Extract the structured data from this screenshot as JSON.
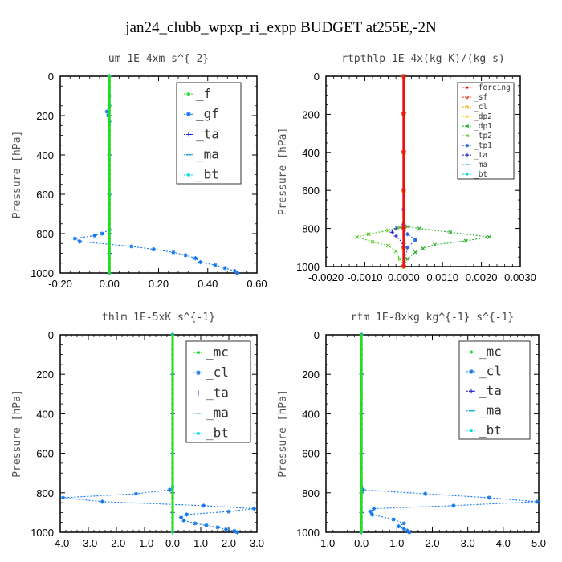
{
  "page": {
    "title": "jan24_clubb_wpxp_ri_expp  BUDGET at255E,-2N"
  },
  "chart_data": [
    {
      "type": "line",
      "title": "um  1E-4xm s^{-2}",
      "ylabel": "Pressure [hPa]",
      "xlim": [
        -0.2,
        0.6
      ],
      "ylim": [
        1000,
        0
      ],
      "xticks": [
        "-0.20",
        "0.00",
        "0.20",
        "0.40",
        "0.60"
      ],
      "yticks": [
        "0",
        "200",
        "400",
        "600",
        "800",
        "1000"
      ],
      "legend_size": "large",
      "series": [
        {
          "name": "_f",
          "color": "#22dd22",
          "marker": "o",
          "x": [
            0,
            0,
            0,
            0,
            0,
            0,
            0,
            0,
            0,
            0,
            0,
            0,
            0,
            0,
            0,
            0,
            0,
            0,
            0,
            0,
            0,
            0,
            0,
            0,
            0,
            0,
            0,
            0,
            0,
            0,
            0,
            0,
            0,
            0,
            0,
            0,
            0,
            0,
            0,
            0,
            0
          ],
          "y": [
            0,
            25,
            50,
            75,
            100,
            125,
            150,
            175,
            200,
            225,
            250,
            275,
            300,
            325,
            350,
            375,
            400,
            425,
            450,
            475,
            500,
            525,
            550,
            575,
            600,
            625,
            650,
            675,
            700,
            725,
            750,
            775,
            800,
            825,
            850,
            875,
            900,
            925,
            950,
            975,
            1000
          ]
        },
        {
          "name": "_gf",
          "color": "#1177ee",
          "marker": "*",
          "x": [
            0,
            0,
            0,
            -0.01,
            -0.005,
            0,
            0,
            0,
            -0.03,
            -0.06,
            -0.14,
            -0.12,
            0.09,
            0.18,
            0.26,
            0.31,
            0.35,
            0.37,
            0.43,
            0.47,
            0.51,
            0.52
          ],
          "y": [
            0,
            100,
            150,
            180,
            200,
            230,
            600,
            780,
            800,
            810,
            825,
            840,
            865,
            880,
            895,
            910,
            925,
            945,
            960,
            975,
            990,
            1000
          ]
        },
        {
          "name": "_ta",
          "color": "#2222dd",
          "marker": "+",
          "x": [
            0,
            0,
            0,
            0,
            0,
            0,
            0
          ],
          "y": [
            0,
            200,
            400,
            600,
            800,
            900,
            1000
          ]
        },
        {
          "name": "_ma",
          "color": "#0099cc",
          "marker": "-",
          "x": [
            0,
            0,
            0,
            0,
            0,
            0,
            0
          ],
          "y": [
            0,
            200,
            400,
            600,
            800,
            900,
            1000
          ]
        },
        {
          "name": "_bt",
          "color": "#00e0e0",
          "marker": "o",
          "x": [
            0,
            0,
            0,
            0,
            0,
            0,
            0
          ],
          "y": [
            0,
            200,
            400,
            600,
            800,
            900,
            1000
          ]
        }
      ]
    },
    {
      "type": "line",
      "title": "rtpthlp  1E-4x(kg K)/(kg s)",
      "ylabel": "Pressure [hPa]",
      "xlim": [
        -0.002,
        0.003
      ],
      "ylim": [
        1000,
        0
      ],
      "xticks": [
        "-0.0020",
        "-0.0010",
        "0.0000",
        "0.0010",
        "0.0020",
        "0.0030"
      ],
      "yticks": [
        "0",
        "200",
        "400",
        "600",
        "800",
        "1000"
      ],
      "legend_size": "small",
      "series": [
        {
          "name": "_forcing",
          "color": "#ee1111",
          "marker": "o",
          "x": [
            0,
            0,
            0,
            0,
            0,
            0,
            0
          ],
          "y": [
            0,
            200,
            400,
            600,
            800,
            900,
            1000
          ]
        },
        {
          "name": "_sf",
          "color": "#ee3322",
          "marker": "v",
          "x": [
            0,
            0,
            0,
            0,
            0,
            0,
            0
          ],
          "y": [
            0,
            200,
            400,
            600,
            800,
            900,
            1000
          ]
        },
        {
          "name": "_cl",
          "color": "#ffaa00",
          "marker": "^",
          "x": [
            0,
            0,
            0,
            0,
            0,
            0,
            0
          ],
          "y": [
            0,
            200,
            400,
            600,
            800,
            900,
            1000
          ]
        },
        {
          "name": "_dp2",
          "color": "#ffcc22",
          "marker": "o",
          "x": [
            0,
            0,
            0,
            0,
            0,
            0,
            0
          ],
          "y": [
            0,
            200,
            400,
            600,
            800,
            900,
            1000
          ]
        },
        {
          "name": "_dp1",
          "color": "#22aa22",
          "marker": "x",
          "x": [
            0,
            0,
            0,
            0.0001,
            0.0004,
            0.0012,
            0.0022,
            0.0016,
            0.0008,
            0.0005,
            0.0003,
            0.0001,
            0
          ],
          "y": [
            0,
            600,
            780,
            790,
            800,
            820,
            845,
            865,
            885,
            905,
            925,
            960,
            1000
          ]
        },
        {
          "name": "_tp2",
          "color": "#55cc22",
          "marker": "x",
          "x": [
            0,
            0,
            0,
            -0.0001,
            -0.0004,
            -0.0009,
            -0.0012,
            -0.0008,
            -0.0004,
            -0.0002,
            -0.0001,
            0
          ],
          "y": [
            0,
            600,
            780,
            795,
            810,
            830,
            845,
            870,
            890,
            920,
            960,
            1000
          ]
        },
        {
          "name": "_tp1",
          "color": "#2266ee",
          "marker": "*",
          "x": [
            0,
            0,
            0,
            0.0001,
            0.0003,
            0.0001,
            0
          ],
          "y": [
            0,
            700,
            800,
            830,
            860,
            900,
            1000
          ]
        },
        {
          "name": "_ta",
          "color": "#2222dd",
          "marker": "+",
          "x": [
            0,
            0,
            -0.0002,
            -0.0003,
            -0.0002,
            0,
            0
          ],
          "y": [
            0,
            780,
            800,
            820,
            840,
            880,
            1000
          ]
        },
        {
          "name": "_ma",
          "color": "#0099cc",
          "marker": "-",
          "x": [
            0,
            0,
            0,
            0,
            0,
            0,
            0
          ],
          "y": [
            0,
            200,
            400,
            600,
            800,
            900,
            1000
          ]
        },
        {
          "name": "_bt",
          "color": "#00e0e0",
          "marker": "o",
          "x": [
            0,
            0,
            0,
            0,
            0,
            0,
            0
          ],
          "y": [
            0,
            200,
            400,
            600,
            800,
            900,
            1000
          ]
        }
      ]
    },
    {
      "type": "line",
      "title": "thlm  1E-5xK s^{-1}",
      "ylabel": "Pressure [hPa]",
      "xlim": [
        -4.0,
        3.0
      ],
      "ylim": [
        1000,
        0
      ],
      "xticks": [
        "-4.0",
        "-3.0",
        "-2.0",
        "-1.0",
        "0.0",
        "1.0",
        "2.0",
        "3.0"
      ],
      "yticks": [
        "0",
        "200",
        "400",
        "600",
        "800",
        "1000"
      ],
      "legend_size": "large",
      "series": [
        {
          "name": "_mc",
          "color": "#22dd22",
          "marker": "o",
          "x": [
            0,
            0,
            0,
            0,
            0,
            0,
            0,
            0,
            0,
            0,
            0,
            0,
            0,
            0,
            0,
            0,
            0,
            0,
            0,
            0,
            0,
            0,
            0,
            0,
            0,
            0,
            0,
            0,
            0,
            0,
            0,
            0,
            0,
            0,
            0,
            0,
            0,
            0,
            0,
            0,
            0
          ],
          "y": [
            0,
            25,
            50,
            75,
            100,
            125,
            150,
            175,
            200,
            225,
            250,
            275,
            300,
            325,
            350,
            375,
            400,
            425,
            450,
            475,
            500,
            525,
            550,
            575,
            600,
            625,
            650,
            675,
            700,
            725,
            750,
            775,
            800,
            825,
            850,
            875,
            900,
            925,
            950,
            975,
            1000
          ]
        },
        {
          "name": "_cl",
          "color": "#1177ee",
          "marker": "*",
          "x": [
            0,
            0,
            -0.1,
            -1.3,
            -3.9,
            -2.5,
            1.1,
            2.9,
            2.0,
            0.5,
            0.3,
            0.4,
            0.8,
            1.2,
            1.6,
            1.9,
            2.2,
            2.3
          ],
          "y": [
            0,
            770,
            785,
            805,
            825,
            845,
            865,
            880,
            895,
            910,
            925,
            940,
            955,
            965,
            975,
            985,
            993,
            1000
          ]
        },
        {
          "name": "_ta",
          "color": "#2222dd",
          "marker": "+",
          "x": [
            0,
            0,
            0,
            0,
            0,
            0,
            0
          ],
          "y": [
            0,
            200,
            400,
            600,
            800,
            900,
            1000
          ]
        },
        {
          "name": "_ma",
          "color": "#0099cc",
          "marker": "-",
          "x": [
            0,
            0,
            0,
            0,
            0,
            0,
            0
          ],
          "y": [
            0,
            200,
            400,
            600,
            800,
            900,
            1000
          ]
        },
        {
          "name": "_bt",
          "color": "#00e0e0",
          "marker": "o",
          "x": [
            0,
            0,
            0,
            0,
            0,
            0,
            0
          ],
          "y": [
            0,
            200,
            400,
            600,
            800,
            900,
            1000
          ]
        }
      ]
    },
    {
      "type": "line",
      "title": "rtm  1E-8xkg kg^{-1} s^{-1}",
      "ylabel": "Pressure [hPa]",
      "xlim": [
        -1.0,
        5.0
      ],
      "ylim": [
        1000,
        0
      ],
      "xticks": [
        "-1.0",
        "0.0",
        "1.0",
        "2.0",
        "3.0",
        "4.0",
        "5.0"
      ],
      "yticks": [
        "0",
        "200",
        "400",
        "600",
        "800",
        "1000"
      ],
      "legend_size": "large",
      "series": [
        {
          "name": "_mc",
          "color": "#22dd22",
          "marker": "o",
          "x": [
            0,
            0,
            0,
            0,
            0,
            0,
            0,
            0,
            0,
            0,
            0,
            0,
            0,
            0,
            0,
            0,
            0,
            0,
            0,
            0,
            0,
            0,
            0,
            0,
            0,
            0,
            0,
            0,
            0,
            0,
            0,
            0,
            0,
            0,
            0,
            0,
            0,
            0,
            0,
            0,
            0
          ],
          "y": [
            0,
            25,
            50,
            75,
            100,
            125,
            150,
            175,
            200,
            225,
            250,
            275,
            300,
            325,
            350,
            375,
            400,
            425,
            450,
            475,
            500,
            525,
            550,
            575,
            600,
            625,
            650,
            675,
            700,
            725,
            750,
            775,
            800,
            825,
            850,
            875,
            900,
            925,
            950,
            975,
            1000
          ]
        },
        {
          "name": "_cl",
          "color": "#1177ee",
          "marker": "*",
          "x": [
            0,
            0,
            0.05,
            1.8,
            3.6,
            4.95,
            2.6,
            0.35,
            0.25,
            0.3,
            0.9,
            1.2,
            1.05,
            1.2,
            1.3,
            1.35
          ],
          "y": [
            0,
            770,
            785,
            805,
            825,
            845,
            865,
            880,
            895,
            910,
            935,
            955,
            970,
            982,
            992,
            1000
          ]
        },
        {
          "name": "_ta",
          "color": "#2222dd",
          "marker": "+",
          "x": [
            0,
            0,
            0,
            0,
            0,
            0,
            0
          ],
          "y": [
            0,
            200,
            400,
            600,
            800,
            900,
            1000
          ]
        },
        {
          "name": "_ma",
          "color": "#0099cc",
          "marker": "-",
          "x": [
            0,
            0,
            0,
            0,
            0,
            0,
            0
          ],
          "y": [
            0,
            200,
            400,
            600,
            800,
            900,
            1000
          ]
        },
        {
          "name": "_bt",
          "color": "#00e0e0",
          "marker": "o",
          "x": [
            0,
            0,
            0,
            0,
            0,
            0,
            0
          ],
          "y": [
            0,
            200,
            400,
            600,
            800,
            900,
            1000
          ]
        }
      ]
    }
  ]
}
